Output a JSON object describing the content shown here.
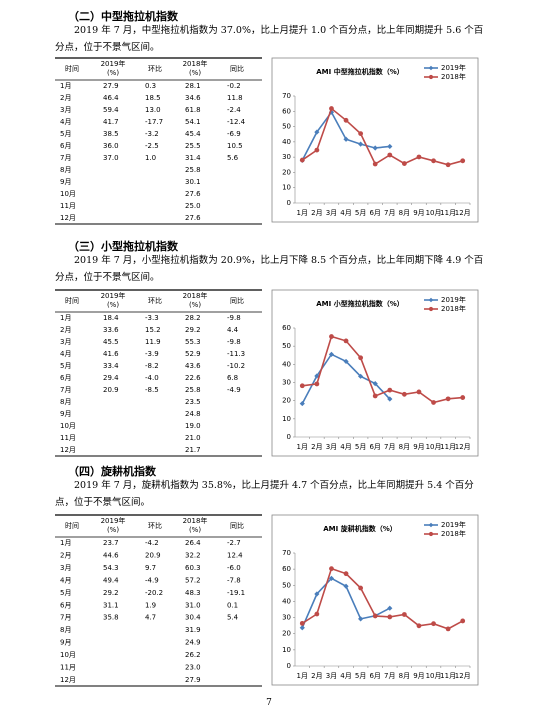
{
  "sections": [
    {
      "heading": "（二）中型拖拉机指数",
      "text": "2019 年 7 月，中型拖拉机指数为 37.0%，比上月提升 1.0 个百分点，比上年同期提升 5.6 个百分点，位于不景气区间。",
      "table": {
        "header": [
          [
            "时间"
          ],
          [
            "2019年",
            "(%)"
          ],
          [
            "环比"
          ],
          [
            "2018年",
            "(%)"
          ],
          [
            "同比"
          ]
        ],
        "rows": [
          [
            "1月",
            "27.9",
            "0.3",
            "28.1",
            "-0.2"
          ],
          [
            "2月",
            "46.4",
            "18.5",
            "34.6",
            "11.8"
          ],
          [
            "3月",
            "59.4",
            "13.0",
            "61.8",
            "-2.4"
          ],
          [
            "4月",
            "41.7",
            "-17.7",
            "54.1",
            "-12.4"
          ],
          [
            "5月",
            "38.5",
            "-3.2",
            "45.4",
            "-6.9"
          ],
          [
            "6月",
            "36.0",
            "-2.5",
            "25.5",
            "10.5"
          ],
          [
            "7月",
            "37.0",
            "1.0",
            "31.4",
            "5.6"
          ],
          [
            "8月",
            null,
            null,
            "25.8",
            null
          ],
          [
            "9月",
            null,
            null,
            "30.1",
            null
          ],
          [
            "10月",
            null,
            null,
            "27.6",
            null
          ],
          [
            "11月",
            null,
            null,
            "25.0",
            null
          ],
          [
            "12月",
            null,
            null,
            "27.6",
            null
          ]
        ]
      },
      "chart": {
        "type": "line",
        "title": "AMI 中型拖拉机指数（%）",
        "categories": [
          "1月",
          "2月",
          "3月",
          "4月",
          "5月",
          "6月",
          "7月",
          "8月",
          "9月",
          "10月",
          "11月",
          "12月"
        ],
        "series": [
          {
            "name": "2019年",
            "color": "#4a7ebb",
            "marker": "diamond",
            "values": [
              27.9,
              46.4,
              59.4,
              41.7,
              38.5,
              36.0,
              37.0,
              null,
              null,
              null,
              null,
              null
            ]
          },
          {
            "name": "2018年",
            "color": "#be4b48",
            "marker": "circle",
            "values": [
              28.1,
              34.6,
              61.8,
              54.1,
              45.4,
              25.5,
              31.4,
              25.8,
              30.1,
              27.6,
              25.0,
              27.6
            ]
          }
        ],
        "ylim": [
          0,
          70
        ],
        "yticks": [
          0,
          10,
          20,
          30,
          40,
          50,
          60,
          70
        ]
      }
    },
    {
      "heading": "（三）小型拖拉机指数",
      "text": "2019 年 7 月，小型拖拉机指数为 20.9%，比上月下降 8.5 个百分点，比上年同期下降 4.9 个百分点，位于不景气区间。",
      "table": {
        "header": [
          [
            "时间"
          ],
          [
            "2019年",
            "(%)"
          ],
          [
            "环比"
          ],
          [
            "2018年",
            "(%)"
          ],
          [
            "同比"
          ]
        ],
        "rows": [
          [
            "1月",
            "18.4",
            "-3.3",
            "28.2",
            "-9.8"
          ],
          [
            "2月",
            "33.6",
            "15.2",
            "29.2",
            "4.4"
          ],
          [
            "3月",
            "45.5",
            "11.9",
            "55.3",
            "-9.8"
          ],
          [
            "4月",
            "41.6",
            "-3.9",
            "52.9",
            "-11.3"
          ],
          [
            "5月",
            "33.4",
            "-8.2",
            "43.6",
            "-10.2"
          ],
          [
            "6月",
            "29.4",
            "-4.0",
            "22.6",
            "6.8"
          ],
          [
            "7月",
            "20.9",
            "-8.5",
            "25.8",
            "-4.9"
          ],
          [
            "8月",
            null,
            null,
            "23.5",
            null
          ],
          [
            "9月",
            null,
            null,
            "24.8",
            null
          ],
          [
            "10月",
            null,
            null,
            "19.0",
            null
          ],
          [
            "11月",
            null,
            null,
            "21.0",
            null
          ],
          [
            "12月",
            null,
            null,
            "21.7",
            null
          ]
        ]
      },
      "chart": {
        "type": "line",
        "title": "AMI 小型拖拉机指数（%）",
        "categories": [
          "1月",
          "2月",
          "3月",
          "4月",
          "5月",
          "6月",
          "7月",
          "8月",
          "9月",
          "10月",
          "11月",
          "12月"
        ],
        "series": [
          {
            "name": "2019年",
            "color": "#4a7ebb",
            "marker": "diamond",
            "values": [
              18.4,
              33.6,
              45.5,
              41.6,
              33.4,
              29.4,
              20.9,
              null,
              null,
              null,
              null,
              null
            ]
          },
          {
            "name": "2018年",
            "color": "#be4b48",
            "marker": "circle",
            "values": [
              28.2,
              29.2,
              55.3,
              52.9,
              43.6,
              22.6,
              25.8,
              23.5,
              24.8,
              19.0,
              21.0,
              21.7
            ]
          }
        ],
        "ylim": [
          0,
          60
        ],
        "yticks": [
          0,
          10,
          20,
          30,
          40,
          50,
          60
        ]
      }
    },
    {
      "heading": "（四）旋耕机指数",
      "text": "2019 年 7 月，旋耕机指数为 35.8%，比上月提升 4.7 个百分点，比上年同期提升 5.4 个百分点，位于不景气区间。",
      "table": {
        "header": [
          [
            "时间"
          ],
          [
            "2019年",
            "(%)"
          ],
          [
            "环比"
          ],
          [
            "2018年",
            "(%)"
          ],
          [
            "同比"
          ]
        ],
        "rows": [
          [
            "1月",
            "23.7",
            "-4.2",
            "26.4",
            "-2.7"
          ],
          [
            "2月",
            "44.6",
            "20.9",
            "32.2",
            "12.4"
          ],
          [
            "3月",
            "54.3",
            "9.7",
            "60.3",
            "-6.0"
          ],
          [
            "4月",
            "49.4",
            "-4.9",
            "57.2",
            "-7.8"
          ],
          [
            "5月",
            "29.2",
            "-20.2",
            "48.3",
            "-19.1"
          ],
          [
            "6月",
            "31.1",
            "1.9",
            "31.0",
            "0.1"
          ],
          [
            "7月",
            "35.8",
            "4.7",
            "30.4",
            "5.4"
          ],
          [
            "8月",
            null,
            null,
            "31.9",
            null
          ],
          [
            "9月",
            null,
            null,
            "24.9",
            null
          ],
          [
            "10月",
            null,
            null,
            "26.2",
            null
          ],
          [
            "11月",
            null,
            null,
            "23.0",
            null
          ],
          [
            "12月",
            null,
            null,
            "27.9",
            null
          ]
        ]
      },
      "chart": {
        "type": "line",
        "title": "AMI 旋耕机指数（%）",
        "categories": [
          "1月",
          "2月",
          "3月",
          "4月",
          "5月",
          "6月",
          "7月",
          "8月",
          "9月",
          "10月",
          "11月",
          "12月"
        ],
        "series": [
          {
            "name": "2019年",
            "color": "#4a7ebb",
            "marker": "diamond",
            "values": [
              23.7,
              44.6,
              54.3,
              49.4,
              29.2,
              31.1,
              35.8,
              null,
              null,
              null,
              null,
              null
            ]
          },
          {
            "name": "2018年",
            "color": "#be4b48",
            "marker": "circle",
            "values": [
              26.4,
              32.2,
              60.3,
              57.2,
              48.3,
              31.0,
              30.4,
              31.9,
              24.9,
              26.2,
              23.0,
              27.9
            ]
          }
        ],
        "ylim": [
          0,
          70
        ],
        "yticks": [
          0,
          10,
          20,
          30,
          40,
          50,
          60,
          70
        ]
      }
    }
  ],
  "page_number": "7"
}
